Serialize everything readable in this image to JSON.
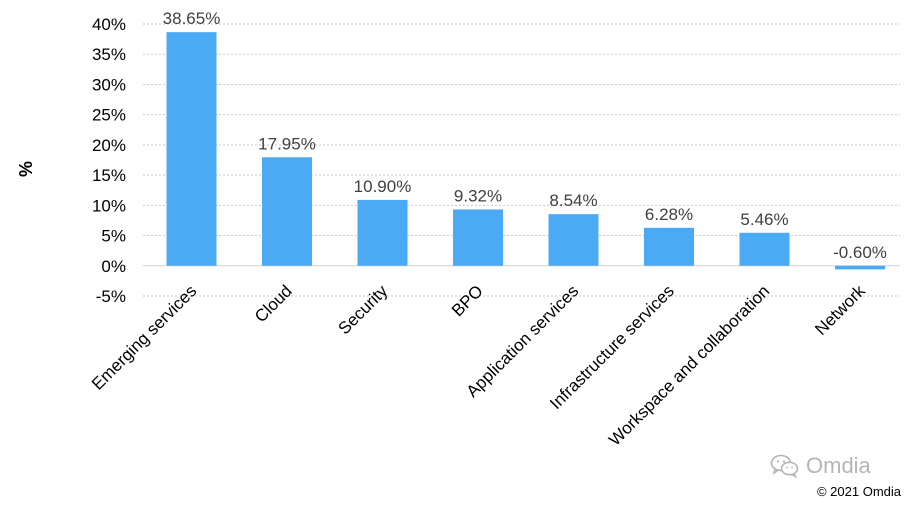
{
  "chart_data": {
    "type": "bar",
    "categories": [
      "Emerging services",
      "Cloud",
      "Security",
      "BPO",
      "Application services",
      "Infrastructure services",
      "Workspace and collaboration",
      "Network"
    ],
    "values": [
      38.65,
      17.95,
      10.9,
      9.32,
      8.54,
      6.28,
      5.46,
      -0.6
    ],
    "data_labels": [
      "38.65%",
      "17.95%",
      "10.90%",
      "9.32%",
      "8.54%",
      "6.28%",
      "5.46%",
      "-0.60%"
    ],
    "title": "",
    "xlabel": "",
    "ylabel": "%",
    "ylim": [
      -5,
      40
    ],
    "yticks": [
      -5,
      0,
      5,
      10,
      15,
      20,
      25,
      30,
      35,
      40
    ],
    "ytick_labels": [
      "-5%",
      "0%",
      "5%",
      "10%",
      "15%",
      "20%",
      "25%",
      "30%",
      "35%",
      "40%"
    ],
    "bar_color": "#4aabf4",
    "grid": true,
    "legend": "none"
  },
  "watermark": {
    "text": "Omdia",
    "icon": "wechat-icon"
  },
  "copyright": "© 2021 Omdia"
}
